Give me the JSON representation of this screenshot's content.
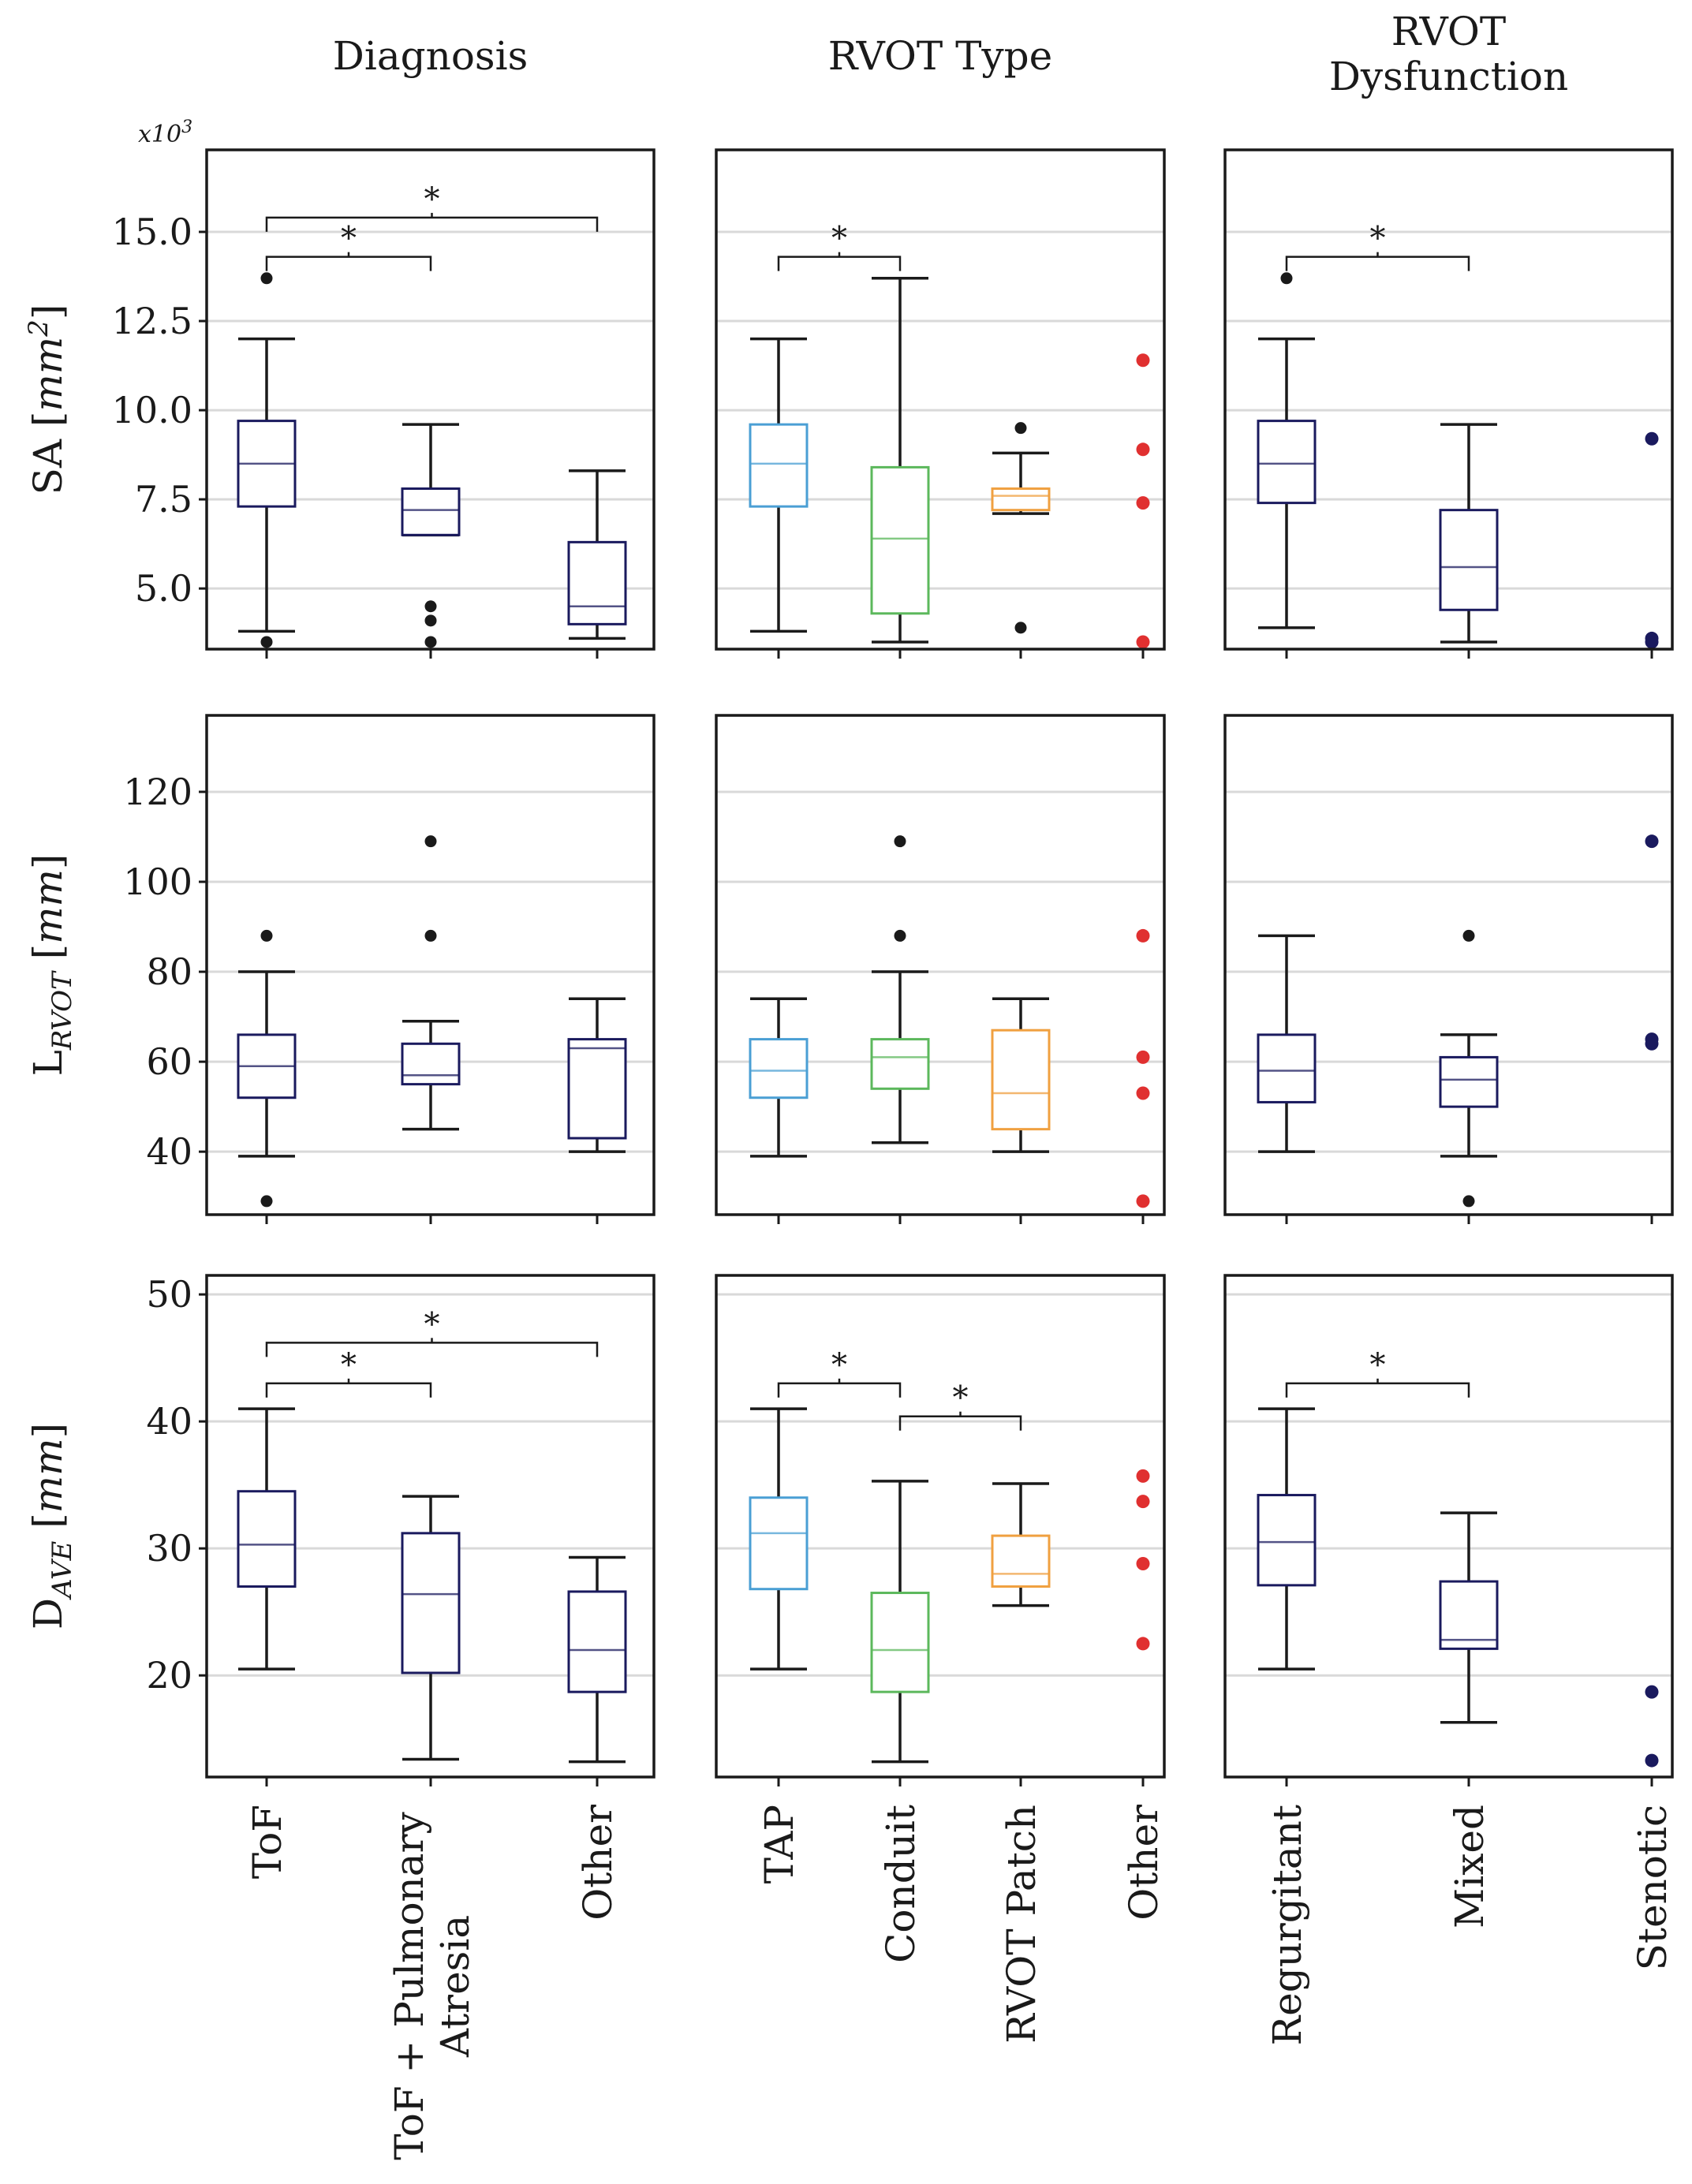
{
  "figure": {
    "column_titles": [
      [
        "Diagnosis"
      ],
      [
        "RVOT Type"
      ],
      [
        "RVOT",
        "Dysfunction"
      ]
    ],
    "rows": [
      {
        "label_main": "SA [",
        "label_sub": "",
        "label_italic": "mm",
        "label_sup": "2",
        "label_end": "]"
      },
      {
        "label_main": "L",
        "label_sub": "RVOT",
        "label_italic": "mm",
        "label_sup": "",
        "label_end": "]"
      },
      {
        "label_main": "D",
        "label_sub": "AVE",
        "label_italic": "mm",
        "label_sup": "",
        "label_end": "]"
      }
    ],
    "multiplier_label": "x10",
    "multiplier_exp": "3",
    "colors": {
      "dark": "#1a1a5e",
      "tap": "#4a9fd4",
      "conduit": "#5cb85c",
      "patch": "#f0a040",
      "other_red": "#e03030",
      "black": "#1a1a1a"
    }
  },
  "chart_data": [
    {
      "type": "box",
      "row": 0,
      "col": 0,
      "ylabel": "SA [mm^2]",
      "ylim": [
        3.3,
        17.3
      ],
      "yticks": [
        5.0,
        7.5,
        10.0,
        12.5,
        15.0
      ],
      "ytick_labels": [
        "5.0",
        "7.5",
        "10.0",
        "12.5",
        "15.0"
      ],
      "multiplier": "x10^3",
      "categories": [
        "ToF",
        "ToF + Pulmonary Atresia",
        "Other"
      ],
      "boxes": [
        {
          "q1": 7.3,
          "med": 8.5,
          "q3": 9.7,
          "lo": 3.8,
          "hi": 12.0,
          "outliers": [
            3.5,
            13.7
          ],
          "color": "#1a1a5e"
        },
        {
          "q1": 6.5,
          "med": 7.2,
          "q3": 7.8,
          "lo": 6.5,
          "hi": 9.6,
          "outliers": [
            3.5,
            4.1,
            4.5
          ],
          "color": "#1a1a5e"
        },
        {
          "q1": 4.0,
          "med": 4.5,
          "q3": 6.3,
          "lo": 3.6,
          "hi": 8.3,
          "outliers": [],
          "color": "#1a1a5e"
        }
      ],
      "points": [],
      "significance": [
        {
          "from": 0,
          "to": 1,
          "y": 14.3,
          "label": "*"
        },
        {
          "from": 0,
          "to": 2,
          "y": 15.4,
          "label": "*"
        }
      ]
    },
    {
      "type": "box",
      "row": 0,
      "col": 1,
      "ylim": [
        3.3,
        17.3
      ],
      "categories": [
        "TAP",
        "Conduit",
        "RVOT Patch",
        "Other"
      ],
      "boxes": [
        {
          "q1": 7.3,
          "med": 8.5,
          "q3": 9.6,
          "lo": 3.8,
          "hi": 12.0,
          "outliers": [],
          "color": "#4a9fd4"
        },
        {
          "q1": 4.3,
          "med": 6.4,
          "q3": 8.4,
          "lo": 3.5,
          "hi": 13.7,
          "outliers": [],
          "color": "#5cb85c"
        },
        {
          "q1": 7.2,
          "med": 7.6,
          "q3": 7.8,
          "lo": 7.1,
          "hi": 8.8,
          "outliers": [
            3.9,
            9.5
          ],
          "color": "#f0a040"
        }
      ],
      "points": [
        {
          "cat": 3,
          "values": [
            3.5,
            7.4,
            8.9,
            11.4
          ],
          "color": "#e03030"
        }
      ],
      "significance": [
        {
          "from": 0,
          "to": 1,
          "y": 14.3,
          "label": "*"
        }
      ]
    },
    {
      "type": "box",
      "row": 0,
      "col": 2,
      "ylim": [
        3.3,
        17.3
      ],
      "categories": [
        "Regurgitant",
        "Mixed",
        "Stenotic"
      ],
      "boxes": [
        {
          "q1": 7.4,
          "med": 8.5,
          "q3": 9.7,
          "lo": 3.9,
          "hi": 12.0,
          "outliers": [
            13.7
          ],
          "color": "#1a1a5e"
        },
        {
          "q1": 4.4,
          "med": 5.6,
          "q3": 7.2,
          "lo": 3.5,
          "hi": 9.6,
          "outliers": [],
          "color": "#1a1a5e"
        }
      ],
      "points": [
        {
          "cat": 2,
          "values": [
            3.5,
            3.6,
            9.2
          ],
          "color": "#1a1a5e"
        }
      ],
      "significance": [
        {
          "from": 0,
          "to": 1,
          "y": 14.3,
          "label": "*"
        }
      ]
    },
    {
      "type": "box",
      "row": 1,
      "col": 0,
      "ylabel": "L_RVOT [mm]",
      "ylim": [
        26,
        137
      ],
      "yticks": [
        40,
        60,
        80,
        100,
        120
      ],
      "ytick_labels": [
        "40",
        "60",
        "80",
        "100",
        "120"
      ],
      "categories": [
        "ToF",
        "ToF + Pulmonary Atresia",
        "Other"
      ],
      "boxes": [
        {
          "q1": 52,
          "med": 59,
          "q3": 66,
          "lo": 39,
          "hi": 80,
          "outliers": [
            29,
            88
          ],
          "color": "#1a1a5e"
        },
        {
          "q1": 55,
          "med": 57,
          "q3": 64,
          "lo": 45,
          "hi": 69,
          "outliers": [
            88,
            109
          ],
          "color": "#1a1a5e"
        },
        {
          "q1": 43,
          "med": 63,
          "q3": 65,
          "lo": 40,
          "hi": 74,
          "outliers": [],
          "color": "#1a1a5e"
        }
      ],
      "points": [],
      "significance": []
    },
    {
      "type": "box",
      "row": 1,
      "col": 1,
      "ylim": [
        26,
        137
      ],
      "categories": [
        "TAP",
        "Conduit",
        "RVOT Patch",
        "Other"
      ],
      "boxes": [
        {
          "q1": 52,
          "med": 58,
          "q3": 65,
          "lo": 39,
          "hi": 74,
          "outliers": [],
          "color": "#4a9fd4"
        },
        {
          "q1": 54,
          "med": 61,
          "q3": 65,
          "lo": 42,
          "hi": 80,
          "outliers": [
            88,
            109
          ],
          "color": "#5cb85c"
        },
        {
          "q1": 45,
          "med": 53,
          "q3": 67,
          "lo": 40,
          "hi": 74,
          "outliers": [],
          "color": "#f0a040"
        }
      ],
      "points": [
        {
          "cat": 3,
          "values": [
            29,
            53,
            61,
            88
          ],
          "color": "#e03030"
        }
      ],
      "significance": []
    },
    {
      "type": "box",
      "row": 1,
      "col": 2,
      "ylim": [
        26,
        137
      ],
      "categories": [
        "Regurgitant",
        "Mixed",
        "Stenotic"
      ],
      "boxes": [
        {
          "q1": 51,
          "med": 58,
          "q3": 66,
          "lo": 40,
          "hi": 88,
          "outliers": [],
          "color": "#1a1a5e"
        },
        {
          "q1": 50,
          "med": 56,
          "q3": 61,
          "lo": 39,
          "hi": 66,
          "outliers": [
            29,
            88
          ],
          "color": "#1a1a5e"
        }
      ],
      "points": [
        {
          "cat": 2,
          "values": [
            64,
            65,
            109
          ],
          "color": "#1a1a5e"
        }
      ],
      "significance": []
    },
    {
      "type": "box",
      "row": 2,
      "col": 0,
      "ylabel": "D_AVE [mm]",
      "ylim": [
        12,
        51.5
      ],
      "yticks": [
        20,
        30,
        40,
        50
      ],
      "ytick_labels": [
        "20",
        "30",
        "40",
        "50"
      ],
      "categories": [
        "ToF",
        "ToF + Pulmonary Atresia",
        "Other"
      ],
      "boxes": [
        {
          "q1": 27,
          "med": 30.3,
          "q3": 34.5,
          "lo": 20.5,
          "hi": 41,
          "outliers": [],
          "color": "#1a1a5e"
        },
        {
          "q1": 20.2,
          "med": 26.4,
          "q3": 31.2,
          "lo": 13.4,
          "hi": 34.1,
          "outliers": [],
          "color": "#1a1a5e"
        },
        {
          "q1": 18.7,
          "med": 22,
          "q3": 26.6,
          "lo": 13.2,
          "hi": 29.3,
          "outliers": [],
          "color": "#1a1a5e"
        }
      ],
      "points": [],
      "significance": [
        {
          "from": 0,
          "to": 1,
          "y": 43,
          "label": "*"
        },
        {
          "from": 0,
          "to": 2,
          "y": 46.2,
          "label": "*"
        }
      ]
    },
    {
      "type": "box",
      "row": 2,
      "col": 1,
      "ylim": [
        12,
        51.5
      ],
      "categories": [
        "TAP",
        "Conduit",
        "RVOT Patch",
        "Other"
      ],
      "boxes": [
        {
          "q1": 26.8,
          "med": 31.2,
          "q3": 34,
          "lo": 20.5,
          "hi": 41,
          "outliers": [],
          "color": "#4a9fd4"
        },
        {
          "q1": 18.7,
          "med": 22,
          "q3": 26.5,
          "lo": 13.2,
          "hi": 35.3,
          "outliers": [],
          "color": "#5cb85c"
        },
        {
          "q1": 27,
          "med": 28,
          "q3": 31,
          "lo": 25.5,
          "hi": 35.1,
          "outliers": [],
          "color": "#f0a040"
        }
      ],
      "points": [
        {
          "cat": 3,
          "values": [
            22.5,
            28.8,
            33.7,
            35.7
          ],
          "color": "#e03030"
        }
      ],
      "significance": [
        {
          "from": 0,
          "to": 1,
          "y": 43,
          "label": "*"
        },
        {
          "from": 1,
          "to": 2,
          "y": 40.4,
          "label": "*"
        }
      ]
    },
    {
      "type": "box",
      "row": 2,
      "col": 2,
      "ylim": [
        12,
        51.5
      ],
      "categories": [
        "Regurgitant",
        "Mixed",
        "Stenotic"
      ],
      "boxes": [
        {
          "q1": 27.1,
          "med": 30.5,
          "q3": 34.2,
          "lo": 20.5,
          "hi": 41,
          "outliers": [],
          "color": "#1a1a5e"
        },
        {
          "q1": 22.1,
          "med": 22.8,
          "q3": 27.4,
          "lo": 16.3,
          "hi": 32.8,
          "outliers": [],
          "color": "#1a1a5e"
        }
      ],
      "points": [
        {
          "cat": 2,
          "values": [
            13.3,
            18.7
          ],
          "color": "#1a1a5e"
        }
      ],
      "significance": [
        {
          "from": 0,
          "to": 1,
          "y": 43,
          "label": "*"
        }
      ]
    }
  ]
}
